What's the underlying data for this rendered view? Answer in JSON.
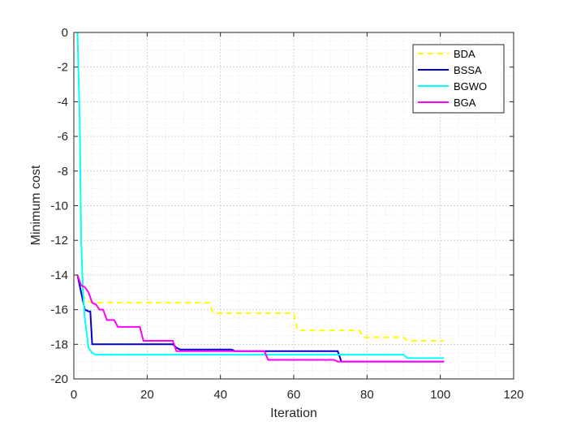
{
  "chart_data": {
    "type": "line",
    "xlabel": "Iteration",
    "ylabel": "Minimum cost",
    "xlim": [
      0,
      120
    ],
    "ylim": [
      -20,
      0
    ],
    "xticks": [
      0,
      20,
      40,
      60,
      80,
      100,
      120
    ],
    "yticks": [
      0,
      -2,
      -4,
      -6,
      -8,
      -10,
      -12,
      -14,
      -16,
      -18,
      -20
    ],
    "grid": "major and minor, dotted",
    "legend_position": "top-right",
    "series": [
      {
        "name": "BDA",
        "color": "#ffff00",
        "dash": "dashed",
        "points": [
          [
            1,
            -14
          ],
          [
            2,
            -15
          ],
          [
            3,
            -15.4
          ],
          [
            5,
            -15.6
          ],
          [
            37,
            -15.6
          ],
          [
            38,
            -16.2
          ],
          [
            60,
            -16.2
          ],
          [
            61,
            -17.2
          ],
          [
            78,
            -17.2
          ],
          [
            79,
            -17.6
          ],
          [
            90,
            -17.6
          ],
          [
            91,
            -17.8
          ],
          [
            101,
            -17.8
          ]
        ]
      },
      {
        "name": "BSSA",
        "color": "#0000cd",
        "dash": "solid",
        "points": [
          [
            1,
            -14
          ],
          [
            2,
            -15
          ],
          [
            3,
            -16
          ],
          [
            4,
            -16.1
          ],
          [
            4.5,
            -16.1
          ],
          [
            5,
            -18
          ],
          [
            27,
            -18
          ],
          [
            28,
            -18.2
          ],
          [
            29,
            -18.3
          ],
          [
            43,
            -18.3
          ],
          [
            44,
            -18.4
          ],
          [
            72,
            -18.4
          ],
          [
            73,
            -19
          ],
          [
            101,
            -19
          ]
        ]
      },
      {
        "name": "BGWO",
        "color": "#00ffff",
        "dash": "solid",
        "points": [
          [
            1,
            0
          ],
          [
            1.6,
            -5
          ],
          [
            2,
            -12
          ],
          [
            2.5,
            -15
          ],
          [
            3,
            -16.5
          ],
          [
            4,
            -18.2
          ],
          [
            5,
            -18.5
          ],
          [
            6,
            -18.6
          ],
          [
            90,
            -18.6
          ],
          [
            91,
            -18.8
          ],
          [
            101,
            -18.8
          ]
        ]
      },
      {
        "name": "BGA",
        "color": "#ff00ff",
        "dash": "solid",
        "points": [
          [
            1,
            -14
          ],
          [
            2,
            -14.6
          ],
          [
            3,
            -14.7
          ],
          [
            4,
            -15
          ],
          [
            5,
            -15.6
          ],
          [
            6,
            -15.7
          ],
          [
            7,
            -16
          ],
          [
            8,
            -16
          ],
          [
            9,
            -16.6
          ],
          [
            11,
            -16.6
          ],
          [
            12,
            -17
          ],
          [
            18,
            -17
          ],
          [
            19,
            -17.8
          ],
          [
            27,
            -17.8
          ],
          [
            28,
            -18.4
          ],
          [
            52,
            -18.4
          ],
          [
            53,
            -18.9
          ],
          [
            71,
            -18.9
          ],
          [
            72,
            -19
          ],
          [
            101,
            -19
          ]
        ]
      }
    ]
  }
}
